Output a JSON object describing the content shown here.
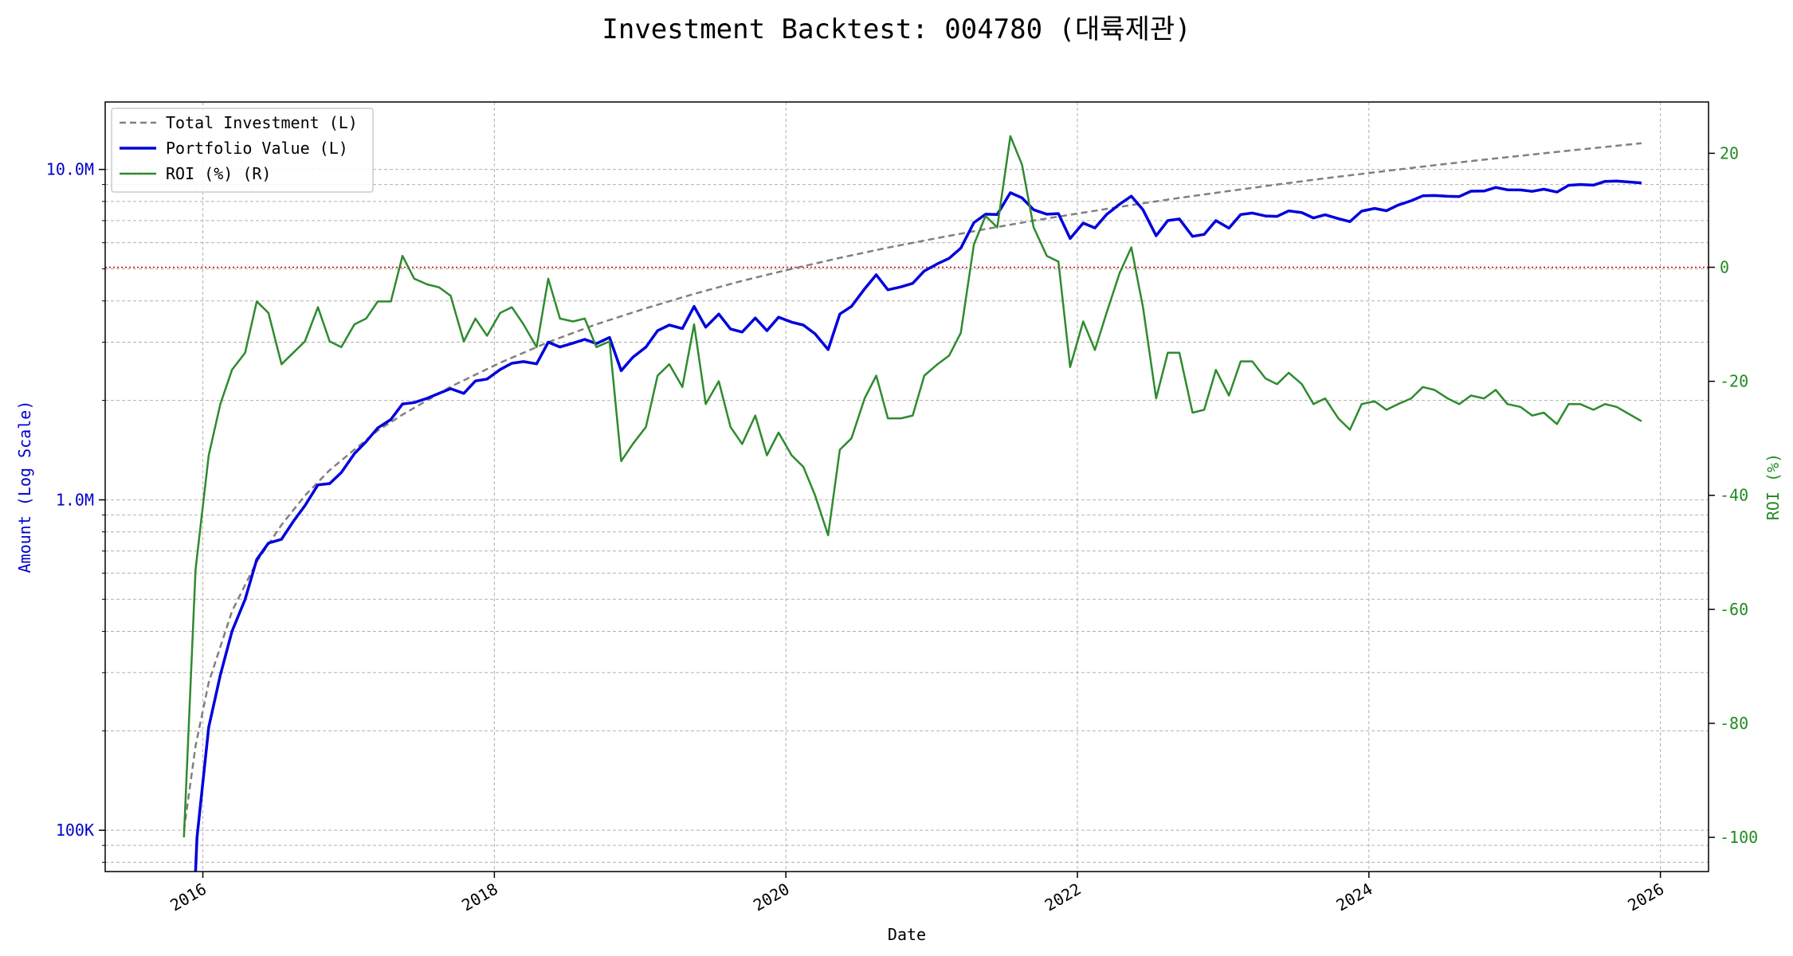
{
  "chart_data": {
    "type": "line",
    "title": "Investment Backtest: 004780 (대륙제관)",
    "xlabel": "Date",
    "ylabel_left": "Amount (Log Scale)",
    "ylabel_right": "ROI (%)",
    "y_left_scale": "log",
    "y_left_range": [
      75000,
      16000000
    ],
    "y_left_ticks": [
      {
        "value": 100000,
        "label": "100K"
      },
      {
        "value": 1000000,
        "label": "1.0M"
      },
      {
        "value": 10000000,
        "label": "10.0M"
      }
    ],
    "y_right_range": [
      -106,
      29
    ],
    "y_right_ticks": [
      20,
      0,
      -20,
      -40,
      -60,
      -80,
      -100
    ],
    "x_range": [
      2015.33,
      2026.33
    ],
    "x_ticks": [
      "2016",
      "2018",
      "2020",
      "2022",
      "2024",
      "2026"
    ],
    "grid": true,
    "legend_position": "upper-left",
    "reference_line": {
      "axis": "right",
      "value": 0,
      "color": "#cc0000",
      "style": "dotted"
    },
    "colors": {
      "total_investment": "#808080",
      "portfolio_value": "#0000dd",
      "roi": "#2e8b2e",
      "left_axis": "#0000cc",
      "right_axis": "#228b22"
    },
    "series": [
      {
        "name": "Total Investment (L)",
        "axis": "left",
        "style": "dashed",
        "x": [
          2015.87,
          2015.95,
          2016.04,
          2016.2,
          2016.37,
          2016.54,
          2016.7,
          2016.87,
          2017.04,
          2017.2,
          2017.37,
          2017.7,
          2018.04,
          2018.37,
          2018.7,
          2019.04,
          2019.37,
          2019.7,
          2020.04,
          2020.37,
          2020.7,
          2021.04,
          2021.37,
          2021.7,
          2022.04,
          2022.37,
          2022.7,
          2023.04,
          2023.37,
          2023.7,
          2024.04,
          2024.37,
          2024.7,
          2025.04,
          2025.37,
          2025.87
        ],
        "y": [
          100000,
          180000,
          280000,
          460000,
          650000,
          840000,
          1030000,
          1230000,
          1420000,
          1620000,
          1810000,
          2200000,
          2600000,
          3000000,
          3400000,
          3800000,
          4200000,
          4600000,
          5000000,
          5400000,
          5800000,
          6200000,
          6600000,
          7000000,
          7400000,
          7800000,
          8200000,
          8600000,
          9000000,
          9400000,
          9800000,
          10200000,
          10600000,
          11000000,
          11400000,
          12000000
        ]
      },
      {
        "name": "Portfolio Value (L)",
        "axis": "left",
        "style": "solid",
        "x": [
          2015.95,
          2015.96,
          2016.04,
          2016.12,
          2016.2,
          2016.29,
          2016.37,
          2016.45,
          2016.54,
          2016.62,
          2016.7,
          2016.79,
          2016.87,
          2016.95,
          2017.04,
          2017.12,
          2017.2,
          2017.29,
          2017.37,
          2017.45,
          2017.54,
          2017.62,
          2017.7,
          2017.79,
          2017.87,
          2017.95,
          2018.04,
          2018.12,
          2018.2,
          2018.29,
          2018.37,
          2018.45,
          2018.54,
          2018.62,
          2018.7,
          2018.79,
          2018.87,
          2018.95,
          2019.04,
          2019.12,
          2019.2,
          2019.29,
          2019.37,
          2019.45,
          2019.54,
          2019.62,
          2019.7,
          2019.79,
          2019.87,
          2019.95,
          2020.04,
          2020.12,
          2020.2,
          2020.29,
          2020.37,
          2020.45,
          2020.54,
          2020.62,
          2020.7,
          2020.79,
          2020.87,
          2020.95,
          2021.04,
          2021.12,
          2021.2,
          2021.29,
          2021.37,
          2021.45,
          2021.54,
          2021.62,
          2021.7,
          2021.79,
          2021.87,
          2021.95,
          2022.04,
          2022.12,
          2022.2,
          2022.29,
          2022.37,
          2022.45,
          2022.54,
          2022.62,
          2022.7,
          2022.79,
          2022.87,
          2022.95,
          2023.04,
          2023.12,
          2023.2,
          2023.29,
          2023.37,
          2023.45,
          2023.54,
          2023.62,
          2023.7,
          2023.79,
          2023.87,
          2023.95,
          2024.04,
          2024.12,
          2024.2,
          2024.29,
          2024.37,
          2024.45,
          2024.54,
          2024.62,
          2024.7,
          2024.79,
          2024.87,
          2024.95,
          2025.04,
          2025.12,
          2025.2,
          2025.29,
          2025.37,
          2025.45,
          2025.54,
          2025.62,
          2025.7,
          2025.87
        ],
        "y": [
          75000,
          95000,
          205000,
          295000,
          400000,
          500000,
          660000,
          740000,
          760000,
          860000,
          960000,
          1110000,
          1120000,
          1210000,
          1380000,
          1500000,
          1650000,
          1750000,
          1950000,
          1970000,
          2030000,
          2100000,
          2170000,
          2100000,
          2290000,
          2320000,
          2480000,
          2590000,
          2620000,
          2580000,
          3000000,
          2900000,
          2980000,
          3060000,
          2970000,
          3100000,
          2460000,
          2700000,
          2900000,
          3250000,
          3380000,
          3300000,
          3850000,
          3330000,
          3650000,
          3290000,
          3220000,
          3550000,
          3250000,
          3570000,
          3450000,
          3380000,
          3180000,
          2850000,
          3650000,
          3850000,
          4350000,
          4800000,
          4320000,
          4410000,
          4520000,
          4930000,
          5180000,
          5380000,
          5780000,
          6900000,
          7320000,
          7300000,
          8500000,
          8200000,
          7550000,
          7320000,
          7350000,
          6180000,
          6880000,
          6650000,
          7300000,
          7850000,
          8300000,
          7550000,
          6300000,
          7000000,
          7080000,
          6270000,
          6360000,
          7000000,
          6640000,
          7300000,
          7380000,
          7230000,
          7210000,
          7490000,
          7400000,
          7130000,
          7290000,
          7100000,
          6950000,
          7480000,
          7620000,
          7500000,
          7800000,
          8040000,
          8320000,
          8340000,
          8290000,
          8280000,
          8590000,
          8600000,
          8820000,
          8680000,
          8670000,
          8580000,
          8710000,
          8540000,
          8950000,
          9000000,
          8960000,
          9200000,
          9220000,
          9100000
        ]
      },
      {
        "name": "ROI (%) (R)",
        "axis": "right",
        "style": "solid",
        "x": [
          2015.87,
          2015.95,
          2016.04,
          2016.12,
          2016.2,
          2016.29,
          2016.37,
          2016.45,
          2016.54,
          2016.62,
          2016.7,
          2016.79,
          2016.87,
          2016.95,
          2017.04,
          2017.12,
          2017.2,
          2017.29,
          2017.37,
          2017.45,
          2017.54,
          2017.62,
          2017.7,
          2017.79,
          2017.87,
          2017.95,
          2018.04,
          2018.12,
          2018.2,
          2018.29,
          2018.37,
          2018.45,
          2018.54,
          2018.62,
          2018.7,
          2018.79,
          2018.87,
          2018.95,
          2019.04,
          2019.12,
          2019.2,
          2019.29,
          2019.37,
          2019.45,
          2019.54,
          2019.62,
          2019.7,
          2019.79,
          2019.87,
          2019.95,
          2020.04,
          2020.12,
          2020.2,
          2020.29,
          2020.37,
          2020.45,
          2020.54,
          2020.62,
          2020.7,
          2020.79,
          2020.87,
          2020.95,
          2021.04,
          2021.12,
          2021.2,
          2021.29,
          2021.37,
          2021.45,
          2021.54,
          2021.62,
          2021.7,
          2021.79,
          2021.87,
          2021.95,
          2022.04,
          2022.12,
          2022.2,
          2022.29,
          2022.37,
          2022.45,
          2022.54,
          2022.62,
          2022.7,
          2022.79,
          2022.87,
          2022.95,
          2023.04,
          2023.12,
          2023.2,
          2023.29,
          2023.37,
          2023.45,
          2023.54,
          2023.62,
          2023.7,
          2023.79,
          2023.87,
          2023.95,
          2024.04,
          2024.12,
          2024.2,
          2024.29,
          2024.37,
          2024.45,
          2024.54,
          2024.62,
          2024.7,
          2024.79,
          2024.87,
          2024.95,
          2025.04,
          2025.12,
          2025.2,
          2025.29,
          2025.37,
          2025.45,
          2025.54,
          2025.62,
          2025.7,
          2025.87
        ],
        "y": [
          -100,
          -53,
          -33,
          -24,
          -18,
          -15,
          -6,
          -8,
          -17,
          -15,
          -13,
          -7,
          -13,
          -14,
          -10,
          -9,
          -6,
          -6,
          2,
          -2,
          -3,
          -3.5,
          -5,
          -13,
          -9,
          -12,
          -8,
          -7,
          -10,
          -14,
          -2,
          -9,
          -9.5,
          -9,
          -14,
          -13,
          -34,
          -31,
          -28,
          -19,
          -17,
          -21,
          -10,
          -24,
          -20,
          -28,
          -31,
          -26,
          -33,
          -29,
          -33,
          -35,
          -40,
          -47,
          -32,
          -30,
          -23,
          -19,
          -26.5,
          -26.5,
          -26,
          -19,
          -17,
          -15.5,
          -11.5,
          4,
          9,
          7,
          23,
          18,
          7,
          2,
          1,
          -17.5,
          -9.5,
          -14.5,
          -8,
          -1,
          3.5,
          -7,
          -23,
          -15,
          -15,
          -25.5,
          -25,
          -18,
          -22.5,
          -16.5,
          -16.5,
          -19.5,
          -20.5,
          -18.5,
          -20.5,
          -24,
          -23,
          -26.5,
          -28.5,
          -24,
          -23.5,
          -25,
          -24,
          -23,
          -21,
          -21.5,
          -23,
          -24,
          -22.5,
          -23,
          -21.5,
          -24,
          -24.5,
          -26,
          -25.5,
          -27.5,
          -24,
          -24,
          -25,
          -24,
          -24.5,
          -27
        ]
      }
    ]
  }
}
